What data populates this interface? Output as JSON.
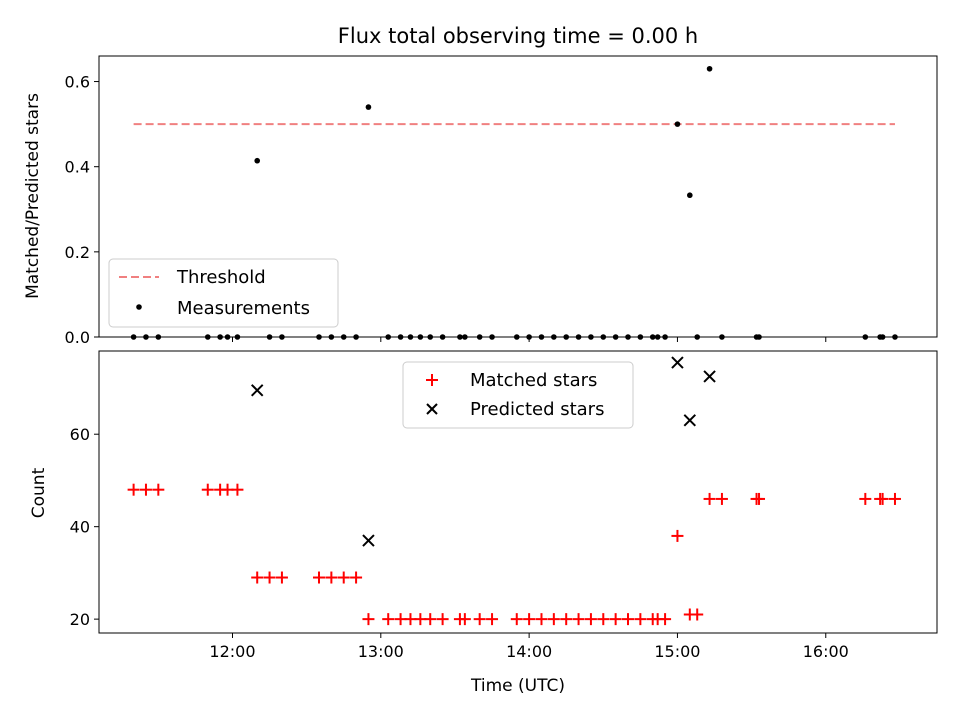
{
  "chart_data": [
    {
      "type": "scatter",
      "title": "Flux total observing time = 0.00 h",
      "xlabel": "",
      "ylabel": "Matched/Predicted stars",
      "xlim": [
        "11:06",
        "16:45"
      ],
      "ylim": [
        0,
        0.66
      ],
      "yticks": [
        0.0,
        0.2,
        0.4,
        0.6
      ],
      "ytick_labels": [
        "0.0",
        "0.2",
        "0.4",
        "0.6"
      ],
      "xticks": [
        "12:00",
        "13:00",
        "14:00",
        "15:00",
        "16:00"
      ],
      "xtick_labels_visible": false,
      "legend_position": "lower-left",
      "threshold": {
        "name": "Threshold",
        "y": 0.5,
        "x_range": [
          "11:20",
          "16:28"
        ],
        "color": "#f08080",
        "style": "dashed"
      },
      "series": [
        {
          "name": "Measurements",
          "marker": "dot",
          "color": "#000000",
          "points": [
            [
              "11:20",
              0
            ],
            [
              "11:25",
              0
            ],
            [
              "11:30",
              0
            ],
            [
              "11:50",
              0
            ],
            [
              "11:55",
              0
            ],
            [
              "11:58",
              0
            ],
            [
              "12:02",
              0
            ],
            [
              "12:10",
              0.414
            ],
            [
              "12:15",
              0
            ],
            [
              "12:20",
              0
            ],
            [
              "12:35",
              0
            ],
            [
              "12:40",
              0
            ],
            [
              "12:45",
              0
            ],
            [
              "12:50",
              0
            ],
            [
              "12:55",
              0.54
            ],
            [
              "13:03",
              0
            ],
            [
              "13:08",
              0
            ],
            [
              "13:12",
              0
            ],
            [
              "13:16",
              0
            ],
            [
              "13:20",
              0
            ],
            [
              "13:25",
              0
            ],
            [
              "13:32",
              0
            ],
            [
              "13:34",
              0
            ],
            [
              "13:40",
              0
            ],
            [
              "13:45",
              0
            ],
            [
              "13:55",
              0
            ],
            [
              "14:00",
              0
            ],
            [
              "14:05",
              0
            ],
            [
              "14:10",
              0
            ],
            [
              "14:15",
              0
            ],
            [
              "14:20",
              0
            ],
            [
              "14:25",
              0
            ],
            [
              "14:30",
              0
            ],
            [
              "14:35",
              0
            ],
            [
              "14:40",
              0
            ],
            [
              "14:45",
              0
            ],
            [
              "14:50",
              0
            ],
            [
              "14:52",
              0
            ],
            [
              "14:55",
              0
            ],
            [
              "15:00",
              0.5
            ],
            [
              "15:05",
              0.333
            ],
            [
              "15:08",
              0
            ],
            [
              "15:13",
              0.63
            ],
            [
              "15:18",
              0
            ],
            [
              "15:32",
              0
            ],
            [
              "15:33",
              0
            ],
            [
              "16:16",
              0
            ],
            [
              "16:22",
              0
            ],
            [
              "16:23",
              0
            ],
            [
              "16:28",
              0
            ]
          ]
        }
      ]
    },
    {
      "type": "scatter",
      "title": "",
      "xlabel": "Time (UTC)",
      "ylabel": "Count",
      "xlim": [
        "11:06",
        "16:45"
      ],
      "ylim": [
        17,
        78
      ],
      "yticks": [
        20,
        40,
        60
      ],
      "ytick_labels": [
        "20",
        "40",
        "60"
      ],
      "xticks": [
        "12:00",
        "13:00",
        "14:00",
        "15:00",
        "16:00"
      ],
      "xtick_labels": [
        "12:00",
        "13:00",
        "14:00",
        "15:00",
        "16:00"
      ],
      "legend_position": "upper-center",
      "series": [
        {
          "name": "Matched stars",
          "marker": "plus",
          "color": "#ff0000",
          "points": [
            [
              "11:20",
              48
            ],
            [
              "11:25",
              48
            ],
            [
              "11:30",
              48
            ],
            [
              "11:50",
              48
            ],
            [
              "11:55",
              48
            ],
            [
              "11:58",
              48
            ],
            [
              "12:02",
              48
            ],
            [
              "12:10",
              29
            ],
            [
              "12:15",
              29
            ],
            [
              "12:20",
              29
            ],
            [
              "12:35",
              29
            ],
            [
              "12:40",
              29
            ],
            [
              "12:45",
              29
            ],
            [
              "12:50",
              29
            ],
            [
              "12:55",
              20
            ],
            [
              "13:03",
              20
            ],
            [
              "13:08",
              20
            ],
            [
              "13:12",
              20
            ],
            [
              "13:16",
              20
            ],
            [
              "13:20",
              20
            ],
            [
              "13:25",
              20
            ],
            [
              "13:32",
              20
            ],
            [
              "13:34",
              20
            ],
            [
              "13:40",
              20
            ],
            [
              "13:45",
              20
            ],
            [
              "13:55",
              20
            ],
            [
              "14:00",
              20
            ],
            [
              "14:05",
              20
            ],
            [
              "14:10",
              20
            ],
            [
              "14:15",
              20
            ],
            [
              "14:20",
              20
            ],
            [
              "14:25",
              20
            ],
            [
              "14:30",
              20
            ],
            [
              "14:35",
              20
            ],
            [
              "14:40",
              20
            ],
            [
              "14:45",
              20
            ],
            [
              "14:50",
              20
            ],
            [
              "14:52",
              20
            ],
            [
              "14:55",
              20
            ],
            [
              "15:00",
              38
            ],
            [
              "15:05",
              21
            ],
            [
              "15:08",
              21
            ],
            [
              "15:13",
              46
            ],
            [
              "15:18",
              46
            ],
            [
              "15:32",
              46
            ],
            [
              "15:33",
              46
            ],
            [
              "16:16",
              46
            ],
            [
              "16:22",
              46
            ],
            [
              "16:23",
              46
            ],
            [
              "16:28",
              46
            ]
          ]
        },
        {
          "name": "Predicted stars",
          "marker": "x",
          "color": "#000000",
          "points": [
            [
              "12:10",
              69.5
            ],
            [
              "12:55",
              37
            ],
            [
              "15:00",
              75.5
            ],
            [
              "15:05",
              63
            ],
            [
              "15:13",
              72.5
            ]
          ]
        }
      ]
    }
  ]
}
